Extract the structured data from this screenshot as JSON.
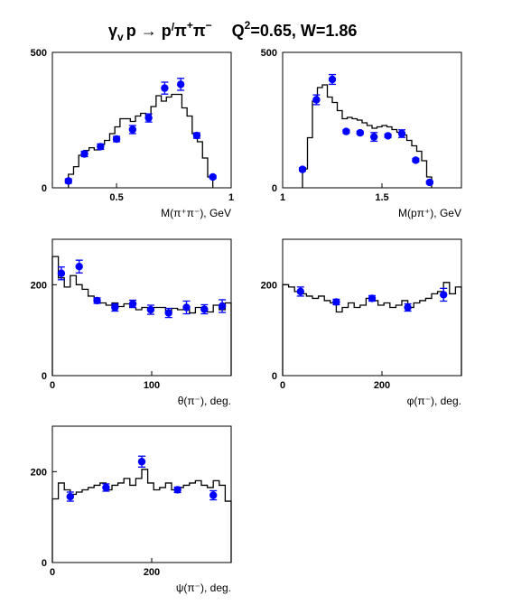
{
  "title": {
    "gamma": "γ",
    "v": "v",
    "reaction": "p → p",
    "prime": "/",
    "pi1": "π",
    "plus": "+",
    "pi2": "π",
    "minus": "−",
    "q2": "Q",
    "q2exp": "2",
    "kin": "=0.65, W=1.86"
  },
  "colors": {
    "points": "#0000ff",
    "line": "#000000"
  },
  "chart_data": [
    {
      "type": "scatter",
      "xlabel": "M(π⁺π⁻), GeV",
      "xlim": [
        0.22,
        1.0
      ],
      "ylim": [
        0,
        500
      ],
      "xticks": [
        {
          "v": 0.5,
          "label": "0.5"
        },
        {
          "v": 1.0,
          "label": "1"
        }
      ],
      "yticks": [
        {
          "v": 0,
          "label": "0"
        },
        {
          "v": 500,
          "label": "500"
        }
      ],
      "points": [
        {
          "x": 0.29,
          "y": 25,
          "err": 8
        },
        {
          "x": 0.36,
          "y": 125,
          "err": 10
        },
        {
          "x": 0.43,
          "y": 152,
          "err": 10
        },
        {
          "x": 0.5,
          "y": 180,
          "err": 10
        },
        {
          "x": 0.57,
          "y": 215,
          "err": 15
        },
        {
          "x": 0.64,
          "y": 258,
          "err": 15
        },
        {
          "x": 0.71,
          "y": 368,
          "err": 22
        },
        {
          "x": 0.78,
          "y": 382,
          "err": 22
        },
        {
          "x": 0.85,
          "y": 193,
          "err": 10
        },
        {
          "x": 0.92,
          "y": 40,
          "err": 6
        }
      ],
      "histogram": {
        "edges": [
          0.29,
          0.3125,
          0.335,
          0.3575,
          0.38,
          0.4025,
          0.425,
          0.4475,
          0.47,
          0.4925,
          0.515,
          0.5375,
          0.56,
          0.5825,
          0.605,
          0.6275,
          0.65,
          0.6725,
          0.695,
          0.7175,
          0.74,
          0.7625,
          0.785,
          0.8075,
          0.83,
          0.8525,
          0.875,
          0.8975,
          0.92
        ],
        "values": [
          50,
          78,
          120,
          138,
          148,
          140,
          160,
          175,
          200,
          225,
          255,
          255,
          245,
          265,
          275,
          260,
          300,
          340,
          320,
          335,
          345,
          345,
          295,
          265,
          200,
          170,
          110,
          40
        ]
      }
    },
    {
      "type": "scatter",
      "xlabel": "M(pπ⁺), GeV",
      "xlim": [
        1.0,
        1.9
      ],
      "ylim": [
        0,
        500
      ],
      "xticks": [
        {
          "v": 1.0,
          "label": "1"
        },
        {
          "v": 1.5,
          "label": "1.5"
        }
      ],
      "yticks": [
        {
          "v": 0,
          "label": "0"
        },
        {
          "v": 500,
          "label": "500"
        }
      ],
      "points": [
        {
          "x": 1.1,
          "y": 68,
          "err": 6
        },
        {
          "x": 1.17,
          "y": 325,
          "err": 18
        },
        {
          "x": 1.25,
          "y": 400,
          "err": 18
        },
        {
          "x": 1.32,
          "y": 208,
          "err": 6
        },
        {
          "x": 1.39,
          "y": 203,
          "err": 6
        },
        {
          "x": 1.46,
          "y": 188,
          "err": 16
        },
        {
          "x": 1.53,
          "y": 192,
          "err": 6
        },
        {
          "x": 1.6,
          "y": 200,
          "err": 14
        },
        {
          "x": 1.67,
          "y": 102,
          "err": 6
        },
        {
          "x": 1.74,
          "y": 20,
          "err": 5
        }
      ],
      "histogram": {
        "edges": [
          1.1,
          1.125,
          1.15,
          1.175,
          1.2,
          1.225,
          1.25,
          1.275,
          1.3,
          1.325,
          1.35,
          1.375,
          1.4,
          1.425,
          1.45,
          1.475,
          1.5,
          1.525,
          1.55,
          1.575,
          1.6,
          1.625,
          1.65,
          1.675,
          1.7,
          1.725,
          1.75
        ],
        "values": [
          70,
          185,
          320,
          370,
          380,
          335,
          315,
          285,
          255,
          260,
          255,
          250,
          240,
          230,
          220,
          225,
          230,
          225,
          215,
          205,
          195,
          175,
          155,
          135,
          100,
          40
        ]
      }
    },
    {
      "type": "scatter",
      "xlabel": "θ(π⁻), deg.",
      "xlim": [
        0,
        180
      ],
      "ylim": [
        0,
        300
      ],
      "xticks": [
        {
          "v": 0,
          "label": "0"
        },
        {
          "v": 100,
          "label": "100"
        }
      ],
      "yticks": [
        {
          "v": 0,
          "label": "0"
        },
        {
          "v": 200,
          "label": "200"
        }
      ],
      "points": [
        {
          "x": 9,
          "y": 225,
          "err": 14
        },
        {
          "x": 27,
          "y": 240,
          "err": 14
        },
        {
          "x": 45,
          "y": 165,
          "err": 6
        },
        {
          "x": 63,
          "y": 150,
          "err": 8
        },
        {
          "x": 81,
          "y": 158,
          "err": 8
        },
        {
          "x": 99,
          "y": 145,
          "err": 10
        },
        {
          "x": 117,
          "y": 138,
          "err": 10
        },
        {
          "x": 135,
          "y": 150,
          "err": 14
        },
        {
          "x": 153,
          "y": 146,
          "err": 10
        },
        {
          "x": 171,
          "y": 153,
          "err": 14
        }
      ],
      "histogram": {
        "edges": [
          0,
          6,
          12,
          18,
          24,
          30,
          36,
          42,
          48,
          54,
          60,
          66,
          72,
          78,
          84,
          90,
          96,
          102,
          108,
          114,
          120,
          126,
          132,
          138,
          144,
          150,
          156,
          162,
          168,
          174,
          180
        ],
        "values": [
          262,
          215,
          195,
          220,
          200,
          190,
          175,
          165,
          160,
          155,
          160,
          152,
          158,
          150,
          145,
          150,
          145,
          150,
          150,
          140,
          148,
          145,
          150,
          138,
          150,
          145,
          140,
          155,
          145,
          160
        ]
      }
    },
    {
      "type": "scatter",
      "xlabel": "φ(π⁻), deg.",
      "xlim": [
        0,
        360
      ],
      "ylim": [
        0,
        300
      ],
      "xticks": [
        {
          "v": 0,
          "label": "0"
        },
        {
          "v": 200,
          "label": "200"
        }
      ],
      "yticks": [
        {
          "v": 0,
          "label": "0"
        },
        {
          "v": 200,
          "label": "200"
        }
      ],
      "points": [
        {
          "x": 36,
          "y": 185,
          "err": 10
        },
        {
          "x": 108,
          "y": 162,
          "err": 6
        },
        {
          "x": 180,
          "y": 170,
          "err": 6
        },
        {
          "x": 252,
          "y": 150,
          "err": 8
        },
        {
          "x": 324,
          "y": 178,
          "err": 14
        }
      ],
      "histogram": {
        "edges": [
          0,
          12,
          24,
          36,
          48,
          60,
          72,
          84,
          96,
          108,
          120,
          132,
          144,
          156,
          168,
          180,
          192,
          204,
          216,
          228,
          240,
          252,
          264,
          276,
          288,
          300,
          312,
          324,
          336,
          348,
          360
        ],
        "values": [
          200,
          195,
          185,
          180,
          175,
          170,
          175,
          165,
          160,
          140,
          150,
          160,
          150,
          155,
          170,
          165,
          155,
          160,
          150,
          155,
          165,
          150,
          160,
          165,
          170,
          180,
          185,
          205,
          180,
          195
        ]
      }
    },
    {
      "type": "scatter",
      "xlabel": "ψ(π⁻), deg.",
      "xlim": [
        0,
        360
      ],
      "ylim": [
        0,
        300
      ],
      "xticks": [
        {
          "v": 0,
          "label": "0"
        },
        {
          "v": 200,
          "label": "200"
        }
      ],
      "yticks": [
        {
          "v": 0,
          "label": "0"
        },
        {
          "v": 200,
          "label": "200"
        }
      ],
      "points": [
        {
          "x": 36,
          "y": 145,
          "err": 10
        },
        {
          "x": 108,
          "y": 165,
          "err": 8
        },
        {
          "x": 180,
          "y": 222,
          "err": 12
        },
        {
          "x": 252,
          "y": 160,
          "err": 6
        },
        {
          "x": 324,
          "y": 148,
          "err": 10
        }
      ],
      "histogram": {
        "edges": [
          0,
          12,
          24,
          36,
          48,
          60,
          72,
          84,
          96,
          108,
          120,
          132,
          144,
          156,
          168,
          180,
          192,
          204,
          216,
          228,
          240,
          252,
          264,
          276,
          288,
          300,
          312,
          324,
          336,
          348,
          360
        ],
        "values": [
          140,
          175,
          160,
          150,
          155,
          160,
          165,
          170,
          175,
          160,
          170,
          175,
          185,
          170,
          185,
          205,
          175,
          160,
          165,
          175,
          160,
          165,
          170,
          175,
          180,
          170,
          165,
          180,
          170,
          135
        ]
      }
    }
  ]
}
